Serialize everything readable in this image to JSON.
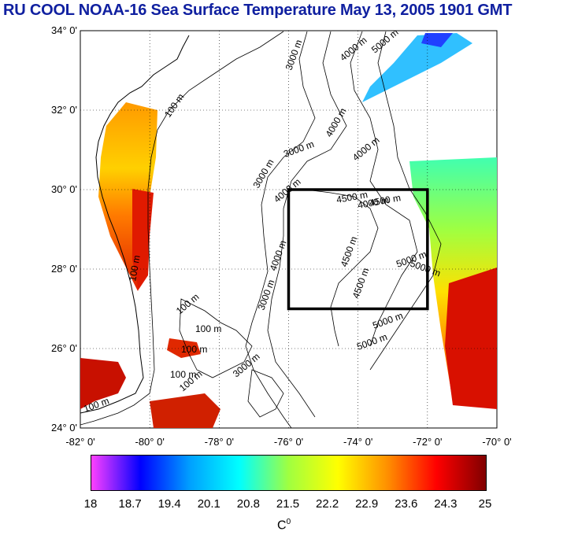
{
  "title": "RU COOL  NOAA-16 Sea Surface Temperature May 13, 2005 1901 GMT",
  "map": {
    "lat_labels": [
      "34° 0'",
      "32° 0'",
      "30° 0'",
      "28° 0'",
      "26° 0'",
      "24° 0'"
    ],
    "lon_labels": [
      "-82° 0'",
      "-80° 0'",
      "-78° 0'",
      "-76° 0'",
      "-74° 0'",
      "-72° 0'",
      "-70° 0'"
    ],
    "contour_labels": [
      "100 m",
      "100 m",
      "100 m",
      "100 m",
      "100 m",
      "100 m",
      "100 m",
      "100 m",
      "3000 m",
      "3000 m",
      "3000 m",
      "3000 m",
      "3000 m",
      "4000 m",
      "4000 m",
      "4000 m",
      "4000 m",
      "4000 m",
      "4000 m",
      "4500 m",
      "4500 m",
      "4500 m",
      "4500 m",
      "5000 m",
      "5000 m",
      "5000 m",
      "5000 m",
      "5000 m"
    ],
    "study_box": {
      "lon_min": -76,
      "lon_max": -72,
      "lat_min": 27,
      "lat_max": 30
    }
  },
  "colorbar": {
    "ticks": [
      "18",
      "18.7",
      "19.4",
      "20.1",
      "20.8",
      "21.5",
      "22.2",
      "22.9",
      "23.6",
      "24.3",
      "25"
    ],
    "min": 18,
    "max": 25,
    "unit_base": "C",
    "unit_sup": "0",
    "stops": [
      "#ff40ff",
      "#0000ff",
      "#00a0ff",
      "#00ffff",
      "#a0ff40",
      "#ffff00",
      "#ff9000",
      "#ff0000",
      "#800000"
    ]
  }
}
